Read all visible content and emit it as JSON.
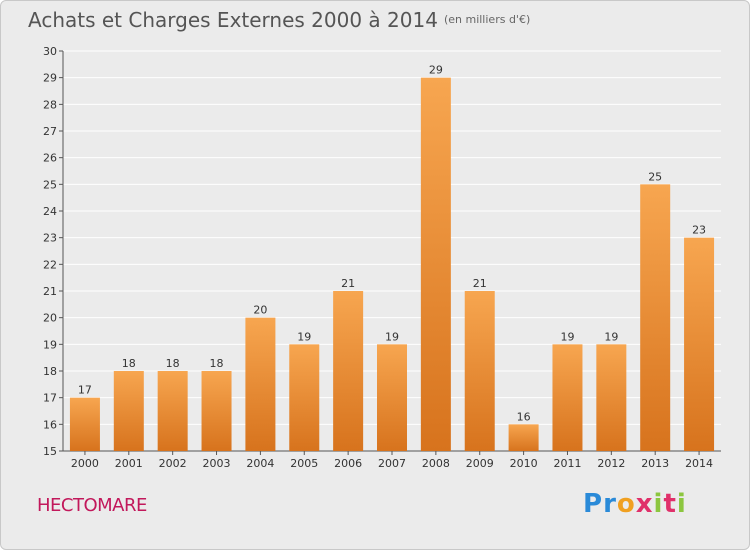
{
  "header": {
    "title": "Achats et Charges Externes 2000 à 2014",
    "unit": "(en milliers d'€)"
  },
  "footer": {
    "commune": "HECTOMARE",
    "logo_letters": [
      "P",
      "r",
      "o",
      "x",
      "i",
      "t",
      "i"
    ],
    "logo_colors": [
      "#2a8ad8",
      "#2a8ad8",
      "#f0a020",
      "#e0306a",
      "#8cc63f",
      "#e0306a",
      "#8cc63f"
    ]
  },
  "colors": {
    "bar_top": "#f7a650",
    "bar_bottom": "#d7731d",
    "grid": "#ffffff",
    "background": "#ebebeb",
    "commune": "#c2185b"
  },
  "chart_data": {
    "type": "bar",
    "categories": [
      "2000",
      "2001",
      "2002",
      "2003",
      "2004",
      "2005",
      "2006",
      "2007",
      "2008",
      "2009",
      "2010",
      "2011",
      "2012",
      "2013",
      "2014"
    ],
    "values": [
      17,
      18,
      18,
      18,
      20,
      19,
      21,
      19,
      29,
      21,
      16,
      19,
      19,
      25,
      23
    ],
    "title": "Achats et Charges Externes 2000 à 2014",
    "xlabel": "",
    "ylabel": "",
    "ylim": [
      15,
      30
    ],
    "yticks": [
      15,
      16,
      17,
      18,
      19,
      20,
      21,
      22,
      23,
      24,
      25,
      26,
      27,
      28,
      29,
      30
    ],
    "grid": true,
    "data_labels": true
  }
}
